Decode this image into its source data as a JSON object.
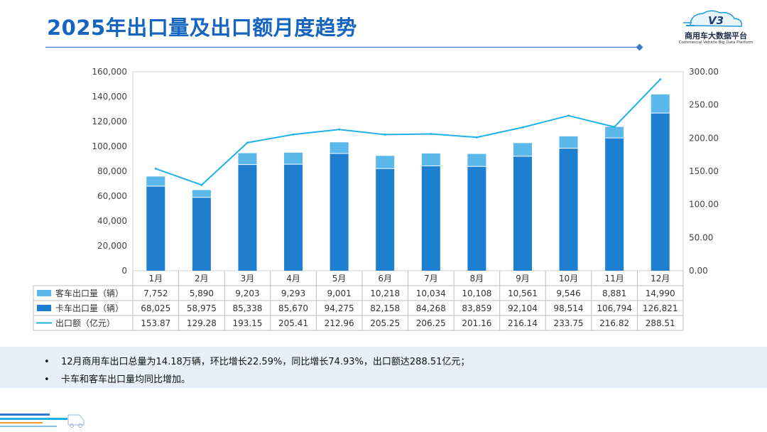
{
  "header": {
    "title": "2025年出口量及出口额月度趋势",
    "logo_mark": "V3",
    "logo_name": "商用车大数据平台",
    "logo_sub": "Commercial Vehicle Big Data Platform"
  },
  "colors": {
    "title": "#1565c0",
    "truck": "#1e7fd0",
    "bus": "#5ab8ea",
    "line": "#1fb1e6",
    "notes_bg": "#e7eff8"
  },
  "chart_data": {
    "type": "bar",
    "stacked": true,
    "categories": [
      "1月",
      "2月",
      "3月",
      "4月",
      "5月",
      "6月",
      "7月",
      "8月",
      "9月",
      "10月",
      "11月",
      "12月"
    ],
    "series": [
      {
        "name": "卡车出口量（辆）",
        "kind": "bar",
        "axis": "left",
        "values": [
          68025,
          58975,
          85338,
          85670,
          94275,
          82158,
          84268,
          83859,
          92104,
          98514,
          106794,
          126821
        ],
        "labels": [
          "68,025",
          "58,975",
          "85,338",
          "85,670",
          "94,275",
          "82,158",
          "84,268",
          "83,859",
          "92,104",
          "98,514",
          "106,794",
          "126,821"
        ]
      },
      {
        "name": "客车出口量（辆）",
        "kind": "bar",
        "axis": "left",
        "values": [
          7752,
          5890,
          9203,
          9293,
          9001,
          10218,
          10034,
          10108,
          10561,
          9546,
          8881,
          14990
        ],
        "labels": [
          "7,752",
          "5,890",
          "9,203",
          "9,293",
          "9,001",
          "10,218",
          "10,034",
          "10,108",
          "10,561",
          "9,546",
          "8,881",
          "14,990"
        ]
      },
      {
        "name": "出口额（亿元）",
        "kind": "line",
        "axis": "right",
        "values": [
          153.87,
          129.28,
          193.15,
          205.41,
          212.96,
          205.25,
          206.25,
          201.16,
          216.14,
          233.75,
          216.82,
          288.51
        ],
        "labels": [
          "153.87",
          "129.28",
          "193.15",
          "205.41",
          "212.96",
          "205.25",
          "206.25",
          "201.16",
          "216.14",
          "233.75",
          "216.82",
          "288.51"
        ]
      }
    ],
    "table_row_order": [
      "客车出口量（辆）",
      "卡车出口量（辆）",
      "出口额（亿元）"
    ],
    "left_axis": {
      "ylim": [
        0,
        160000
      ],
      "ticks": [
        "0",
        "20,000",
        "40,000",
        "60,000",
        "80,000",
        "100,000",
        "120,000",
        "140,000",
        "160,000"
      ]
    },
    "right_axis": {
      "ylim": [
        0,
        300
      ],
      "ticks": [
        "0.00",
        "50.00",
        "100.00",
        "150.00",
        "200.00",
        "250.00",
        "300.00"
      ]
    },
    "legend": "data-table-below"
  },
  "notes": [
    "12月商用车出口总量为14.18万辆，环比增长22.59%，同比增长74.93%，出口额达288.51亿元；",
    "卡车和客车出口量均同比增加。"
  ],
  "bullet": "•"
}
